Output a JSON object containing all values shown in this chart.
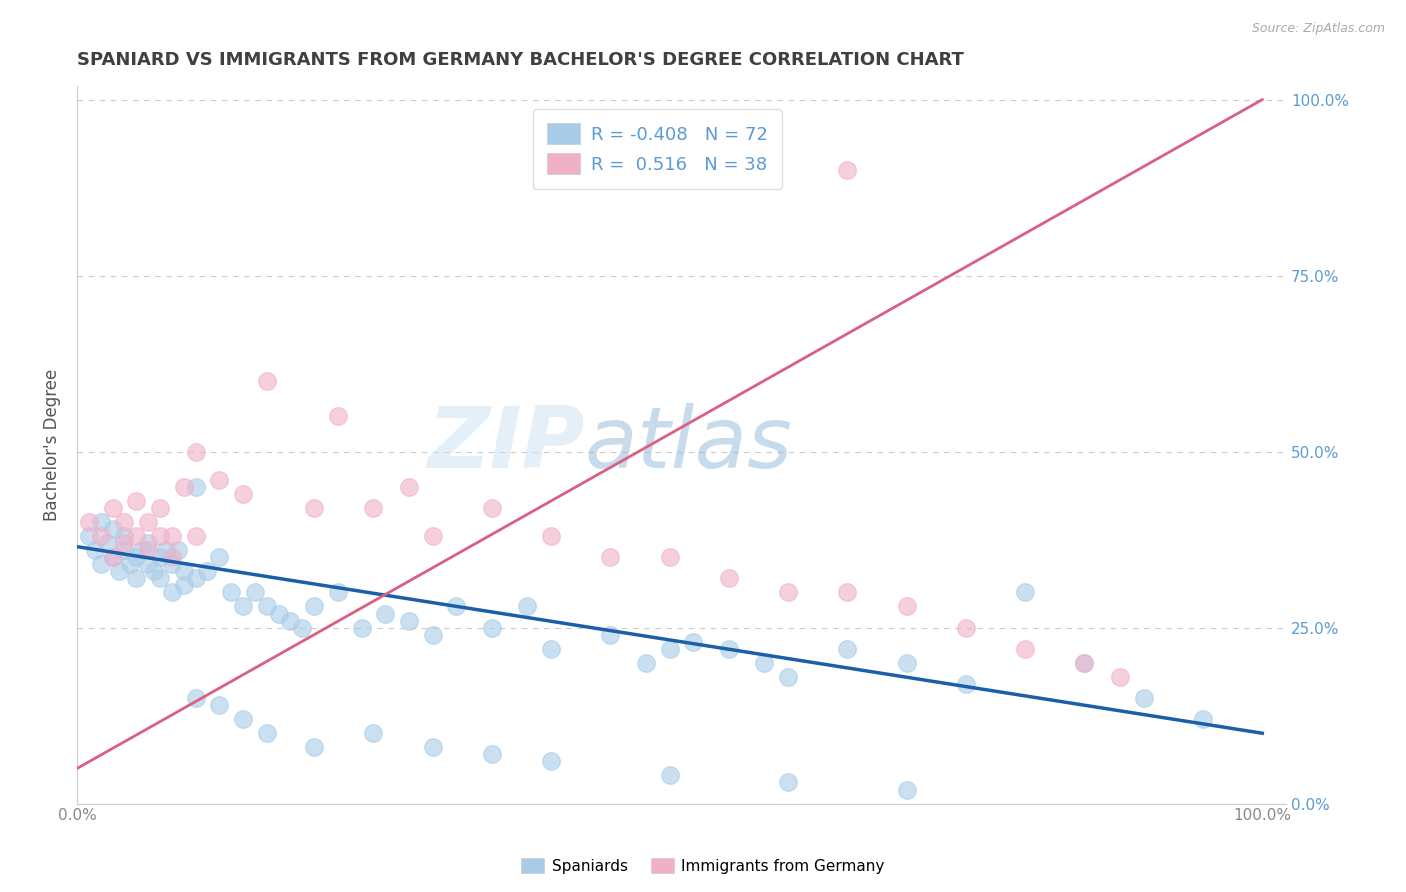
{
  "title": "SPANIARD VS IMMIGRANTS FROM GERMANY BACHELOR'S DEGREE CORRELATION CHART",
  "source": "Source: ZipAtlas.com",
  "ylabel": "Bachelor's Degree",
  "watermark": "ZIPatlas",
  "legend_blue_label": "Spaniards",
  "legend_pink_label": "Immigrants from Germany",
  "R_blue": -0.408,
  "N_blue": 72,
  "R_pink": 0.516,
  "N_pink": 38,
  "blue_color": "#a8cce8",
  "pink_color": "#f0b0c8",
  "blue_line_color": "#1a5fa8",
  "pink_line_color": "#d96080",
  "bg_color": "#ffffff",
  "grid_color": "#cccccc",
  "title_color": "#404040",
  "right_tick_color": "#5b9bd5",
  "axis_color": "#888888",
  "legend_text_color": "#5b9bd5",
  "blue_scatter_x": [
    0.01,
    0.015,
    0.02,
    0.02,
    0.025,
    0.03,
    0.03,
    0.035,
    0.04,
    0.04,
    0.045,
    0.05,
    0.05,
    0.055,
    0.06,
    0.06,
    0.065,
    0.07,
    0.07,
    0.075,
    0.08,
    0.08,
    0.085,
    0.09,
    0.09,
    0.1,
    0.1,
    0.11,
    0.12,
    0.13,
    0.14,
    0.15,
    0.16,
    0.17,
    0.18,
    0.19,
    0.2,
    0.22,
    0.24,
    0.26,
    0.28,
    0.3,
    0.32,
    0.35,
    0.38,
    0.4,
    0.45,
    0.48,
    0.5,
    0.52,
    0.55,
    0.58,
    0.6,
    0.65,
    0.7,
    0.75,
    0.8,
    0.85,
    0.9,
    0.95,
    0.1,
    0.12,
    0.14,
    0.16,
    0.2,
    0.25,
    0.3,
    0.35,
    0.4,
    0.5,
    0.6,
    0.7
  ],
  "blue_scatter_y": [
    0.38,
    0.36,
    0.4,
    0.34,
    0.37,
    0.35,
    0.39,
    0.33,
    0.36,
    0.38,
    0.34,
    0.35,
    0.32,
    0.36,
    0.34,
    0.37,
    0.33,
    0.35,
    0.32,
    0.36,
    0.34,
    0.3,
    0.36,
    0.33,
    0.31,
    0.32,
    0.45,
    0.33,
    0.35,
    0.3,
    0.28,
    0.3,
    0.28,
    0.27,
    0.26,
    0.25,
    0.28,
    0.3,
    0.25,
    0.27,
    0.26,
    0.24,
    0.28,
    0.25,
    0.28,
    0.22,
    0.24,
    0.2,
    0.22,
    0.23,
    0.22,
    0.2,
    0.18,
    0.22,
    0.2,
    0.17,
    0.3,
    0.2,
    0.15,
    0.12,
    0.15,
    0.14,
    0.12,
    0.1,
    0.08,
    0.1,
    0.08,
    0.07,
    0.06,
    0.04,
    0.03,
    0.02
  ],
  "pink_scatter_x": [
    0.01,
    0.02,
    0.03,
    0.03,
    0.04,
    0.04,
    0.05,
    0.05,
    0.06,
    0.06,
    0.07,
    0.07,
    0.08,
    0.08,
    0.09,
    0.1,
    0.1,
    0.12,
    0.14,
    0.16,
    0.2,
    0.22,
    0.25,
    0.28,
    0.3,
    0.35,
    0.4,
    0.45,
    0.5,
    0.55,
    0.6,
    0.65,
    0.7,
    0.75,
    0.8,
    0.85,
    0.88,
    0.65
  ],
  "pink_scatter_y": [
    0.4,
    0.38,
    0.42,
    0.35,
    0.4,
    0.37,
    0.38,
    0.43,
    0.36,
    0.4,
    0.38,
    0.42,
    0.35,
    0.38,
    0.45,
    0.38,
    0.5,
    0.46,
    0.44,
    0.6,
    0.42,
    0.55,
    0.42,
    0.45,
    0.38,
    0.42,
    0.38,
    0.35,
    0.35,
    0.32,
    0.3,
    0.3,
    0.28,
    0.25,
    0.22,
    0.2,
    0.18,
    0.9
  ],
  "blue_trend_x": [
    0.0,
    1.0
  ],
  "blue_trend_y": [
    0.365,
    0.1
  ],
  "pink_trend_x": [
    0.0,
    1.0
  ],
  "pink_trend_y": [
    0.05,
    1.0
  ],
  "xlim": [
    0.0,
    1.02
  ],
  "ylim": [
    0.0,
    1.02
  ],
  "xticks": [
    0.0,
    0.25,
    0.5,
    0.75,
    1.0
  ],
  "yticks": [
    0.0,
    0.25,
    0.5,
    0.75,
    1.0
  ],
  "xticklabels": [
    "0.0%",
    "",
    "",
    "",
    "100.0%"
  ],
  "yticklabels_right": [
    "0.0%",
    "25.0%",
    "50.0%",
    "75.0%",
    "100.0%"
  ]
}
